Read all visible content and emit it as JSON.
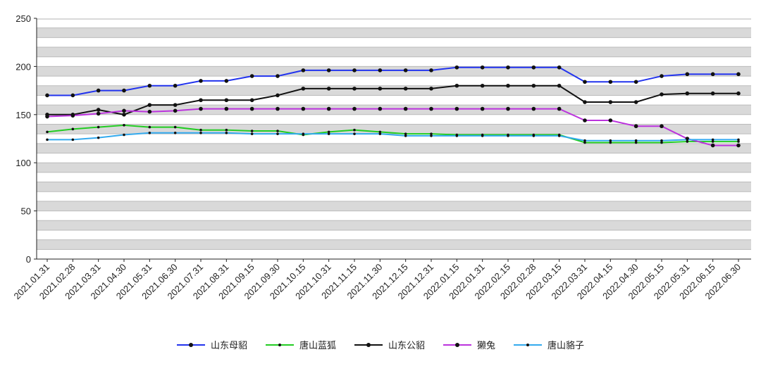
{
  "chart_data": {
    "type": "line",
    "title": "",
    "xlabel": "",
    "ylabel": "",
    "ylim": [
      0,
      250
    ],
    "yticks": [
      0,
      50,
      100,
      150,
      200,
      250
    ],
    "grid": "horizontal alternating bands every 10",
    "legend_position": "bottom",
    "categories": [
      "2021.01.31",
      "2021.02.28",
      "2021.03.31",
      "2021.04.30",
      "2021.05.31",
      "2021.06.30",
      "2021.07.31",
      "2021.08.31",
      "2021.09.15",
      "2021.09.30",
      "2021.10.15",
      "2021.10.31",
      "2021.11.15",
      "2021.11.30",
      "2021.12.15",
      "2021.12.31",
      "2022.01.15",
      "2022.01.31",
      "2022.02.15",
      "2022.02.28",
      "2022.03.15",
      "2022.03.31",
      "2022.04.15",
      "2022.04.30",
      "2022.05.15",
      "2022.05.31",
      "2022.06.15",
      "2022.06.30"
    ],
    "series": [
      {
        "name": "山东母貂",
        "color": "#2233ee",
        "values": [
          170,
          170,
          175,
          175,
          180,
          180,
          185,
          185,
          190,
          190,
          196,
          196,
          196,
          196,
          196,
          196,
          199,
          199,
          199,
          199,
          199,
          184,
          184,
          184,
          190,
          192,
          192,
          192
        ]
      },
      {
        "name": "唐山蓝狐",
        "color": "#22cc22",
        "values": [
          132,
          135,
          137,
          139,
          137,
          137,
          134,
          134,
          133,
          133,
          129,
          132,
          134,
          132,
          130,
          130,
          129,
          129,
          129,
          129,
          129,
          121,
          121,
          121,
          121,
          122,
          122,
          122
        ]
      },
      {
        "name": "山东公貂",
        "color": "#111111",
        "values": [
          150,
          150,
          155,
          150,
          160,
          160,
          165,
          165,
          165,
          170,
          177,
          177,
          177,
          177,
          177,
          177,
          180,
          180,
          180,
          180,
          180,
          163,
          163,
          163,
          171,
          172,
          172,
          172
        ]
      },
      {
        "name": "獭兔",
        "color": "#bb33dd",
        "values": [
          148,
          149,
          151,
          154,
          153,
          154,
          156,
          156,
          156,
          156,
          156,
          156,
          156,
          156,
          156,
          156,
          156,
          156,
          156,
          156,
          156,
          144,
          144,
          138,
          138,
          125,
          118,
          118
        ]
      },
      {
        "name": "唐山貉子",
        "color": "#33aaee",
        "values": [
          124,
          124,
          126,
          129,
          131,
          131,
          131,
          131,
          130,
          130,
          130,
          130,
          130,
          130,
          128,
          128,
          128,
          128,
          128,
          128,
          128,
          123,
          123,
          123,
          123,
          124,
          124,
          124
        ]
      }
    ]
  }
}
